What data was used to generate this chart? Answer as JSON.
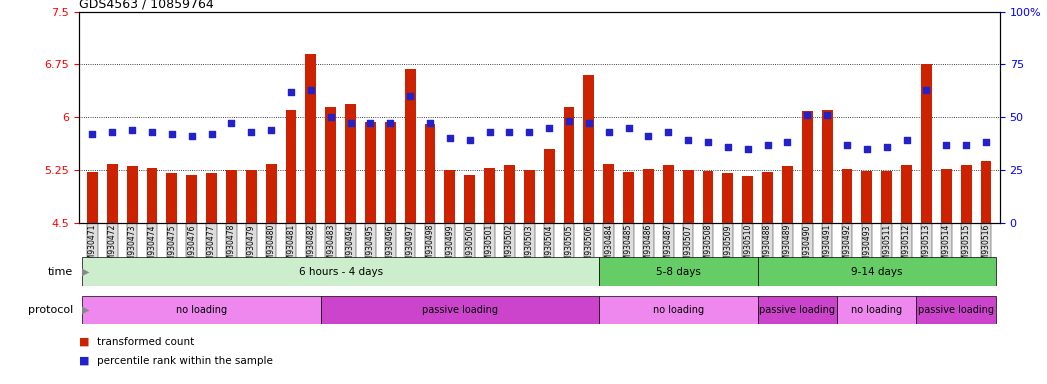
{
  "title": "GDS4563 / 10859764",
  "categories": [
    "GSM930471",
    "GSM930472",
    "GSM930473",
    "GSM930474",
    "GSM930475",
    "GSM930476",
    "GSM930477",
    "GSM930478",
    "GSM930479",
    "GSM930480",
    "GSM930481",
    "GSM930482",
    "GSM930483",
    "GSM930494",
    "GSM930495",
    "GSM930496",
    "GSM930497",
    "GSM930498",
    "GSM930499",
    "GSM930500",
    "GSM930501",
    "GSM930502",
    "GSM930503",
    "GSM930504",
    "GSM930505",
    "GSM930506",
    "GSM930484",
    "GSM930485",
    "GSM930486",
    "GSM930487",
    "GSM930507",
    "GSM930508",
    "GSM930509",
    "GSM930510",
    "GSM930488",
    "GSM930489",
    "GSM930490",
    "GSM930491",
    "GSM930492",
    "GSM930493",
    "GSM930511",
    "GSM930512",
    "GSM930513",
    "GSM930514",
    "GSM930515",
    "GSM930516"
  ],
  "bar_values": [
    5.22,
    5.33,
    5.3,
    5.28,
    5.2,
    5.18,
    5.2,
    5.25,
    5.25,
    5.33,
    6.1,
    6.9,
    6.15,
    6.18,
    5.93,
    5.93,
    6.68,
    5.9,
    5.25,
    5.18,
    5.28,
    5.32,
    5.25,
    5.55,
    6.15,
    6.6,
    5.33,
    5.22,
    5.27,
    5.32,
    5.25,
    5.24,
    5.2,
    5.17,
    5.22,
    5.31,
    6.08,
    6.1,
    5.27,
    5.24,
    5.23,
    5.32,
    6.75,
    5.27,
    5.32,
    5.38
  ],
  "percentile_values": [
    42,
    43,
    44,
    43,
    42,
    41,
    42,
    47,
    43,
    44,
    62,
    63,
    50,
    47,
    47,
    47,
    60,
    47,
    40,
    39,
    43,
    43,
    43,
    45,
    48,
    47,
    43,
    45,
    41,
    43,
    39,
    38,
    36,
    35,
    37,
    38,
    51,
    51,
    37,
    35,
    36,
    39,
    63,
    37,
    37,
    38
  ],
  "ylim_left": [
    4.5,
    7.5
  ],
  "ylim_right": [
    0,
    100
  ],
  "yticks_left": [
    4.5,
    5.25,
    6.0,
    6.75,
    7.5
  ],
  "yticks_right": [
    0,
    25,
    50,
    75,
    100
  ],
  "bar_color": "#cc2200",
  "dot_color": "#2222cc",
  "bar_baseline": 4.5,
  "time_groups": [
    {
      "label": "6 hours - 4 days",
      "start": 0,
      "end": 26,
      "color": "#cceecc"
    },
    {
      "label": "5-8 days",
      "start": 26,
      "end": 34,
      "color": "#66cc66"
    },
    {
      "label": "9-14 days",
      "start": 34,
      "end": 46,
      "color": "#66cc66"
    }
  ],
  "protocol_groups": [
    {
      "label": "no loading",
      "start": 0,
      "end": 12,
      "color": "#ee88ee"
    },
    {
      "label": "passive loading",
      "start": 12,
      "end": 26,
      "color": "#cc44cc"
    },
    {
      "label": "no loading",
      "start": 26,
      "end": 34,
      "color": "#ee88ee"
    },
    {
      "label": "passive loading",
      "start": 34,
      "end": 38,
      "color": "#cc44cc"
    },
    {
      "label": "no loading",
      "start": 38,
      "end": 42,
      "color": "#ee88ee"
    },
    {
      "label": "passive loading",
      "start": 42,
      "end": 46,
      "color": "#cc44cc"
    }
  ],
  "label_transformed": "transformed count",
  "label_percentile": "percentile rank within the sample",
  "time_label": "time",
  "protocol_label": "protocol",
  "xticklabel_bg": "#dddddd"
}
